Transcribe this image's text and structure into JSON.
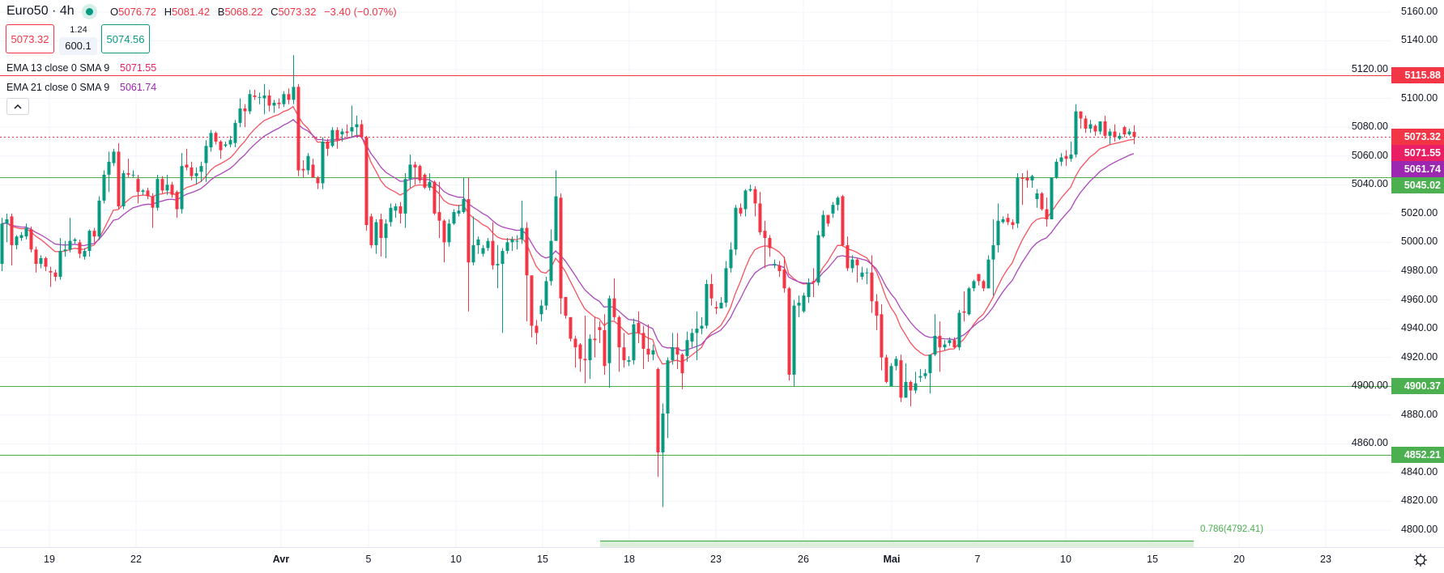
{
  "header": {
    "symbol": "Euro50 · 4h",
    "status_icon": "market-open-dot-icon",
    "ohlc": {
      "o_label": "O",
      "o": "5076.72",
      "h_label": "H",
      "h": "5081.42",
      "l_label": "B",
      "l": "5068.22",
      "c_label": "C",
      "c": "5073.32",
      "change": "−3.40 (−0.07%)"
    },
    "sell_price": "5073.32",
    "spread": "1.24",
    "quantity": "600.1",
    "buy_price": "5074.56"
  },
  "indicators": [
    {
      "label": "EMA 13 close 0 SMA 9",
      "value": "5071.55",
      "color": "#e91e63"
    },
    {
      "label": "EMA 21 close 0 SMA 9",
      "value": "5061.74",
      "color": "#9c27b0"
    }
  ],
  "collapse_icon": "chevron-up-icon",
  "settings_icon": "gear-icon",
  "price_axis": {
    "ticks": [
      "5160.00",
      "5140.00",
      "5120.00",
      "5100.00",
      "5080.00",
      "5060.00",
      "5040.00",
      "5020.00",
      "5000.00",
      "4980.00",
      "4960.00",
      "4940.00",
      "4920.00",
      "4900.00",
      "4880.00",
      "4860.00",
      "4840.00",
      "4820.00",
      "4800.00"
    ]
  },
  "time_axis": {
    "labels": [
      "19",
      "22",
      "Avr",
      "5",
      "10",
      "15",
      "18",
      "23",
      "26",
      "Mai",
      "7",
      "10",
      "15",
      "20",
      "23"
    ]
  },
  "price_badges": [
    {
      "value": "5115.88",
      "color": "#f23645"
    },
    {
      "value": "5073.32",
      "color": "#f23645"
    },
    {
      "value": "5071.55",
      "color": "#e91e63"
    },
    {
      "value": "5061.74",
      "color": "#9c27b0"
    },
    {
      "value": "5045.02",
      "color": "#4caf50"
    },
    {
      "value": "4900.37",
      "color": "#4caf50"
    },
    {
      "value": "4852.21",
      "color": "#4caf50"
    }
  ],
  "fib": {
    "label": "0.786(4792.41)",
    "level": 4792.41,
    "color": "#4caf50"
  },
  "chart_data": {
    "type": "candlestick",
    "timeframe": "4h",
    "ylim": [
      4790,
      5165
    ],
    "grid": true,
    "colors": {
      "up": "#089981",
      "down": "#f23645",
      "ema13": "#f7525f",
      "ema21": "#ab47bc"
    },
    "horizontal_levels": [
      {
        "price": 5115.88,
        "color": "#f23645",
        "style": "solid"
      },
      {
        "price": 5073.32,
        "color": "#f23645",
        "style": "dotted"
      },
      {
        "price": 5045.02,
        "color": "#4caf50",
        "style": "solid"
      },
      {
        "price": 4900.37,
        "color": "#4caf50",
        "style": "solid"
      },
      {
        "price": 4852.21,
        "color": "#4caf50",
        "style": "solid"
      }
    ],
    "ema_periods": [
      13,
      21
    ],
    "ohlc_fields": [
      "open",
      "high",
      "low",
      "close"
    ],
    "ohlc": [
      [
        4985,
        5017,
        4980,
        5013
      ],
      [
        5013,
        5020,
        5000,
        5016
      ],
      [
        5018,
        5020,
        4984,
        4998
      ],
      [
        4998,
        5005,
        4995,
        5004
      ],
      [
        5003,
        5007,
        5001,
        5005
      ],
      [
        5004,
        5013,
        5002,
        5010
      ],
      [
        5009,
        5011,
        4993,
        4995
      ],
      [
        4995,
        4997,
        4979,
        4985
      ],
      [
        4985,
        4991,
        4982,
        4989
      ],
      [
        4989,
        4990,
        4980,
        4983
      ],
      [
        4980,
        4983,
        4969,
        4979
      ],
      [
        4979,
        4981,
        4973,
        4976
      ],
      [
        4976,
        5003,
        4974,
        4994
      ],
      [
        4994,
        5001,
        4990,
        4995
      ],
      [
        4995,
        5017,
        4993,
        5001
      ],
      [
        5001,
        5003,
        4999,
        5002
      ],
      [
        5000,
        5002,
        4989,
        4992
      ],
      [
        4990,
        4996,
        4988,
        4994
      ],
      [
        4994,
        5009,
        4990,
        5008
      ],
      [
        5008,
        5010,
        5000,
        5004
      ],
      [
        5004,
        5032,
        5002,
        5029
      ],
      [
        5029,
        5050,
        5027,
        5047
      ],
      [
        5047,
        5063,
        5035,
        5056
      ],
      [
        5055,
        5065,
        5053,
        5063
      ],
      [
        5063,
        5069,
        5023,
        5025
      ],
      [
        5025,
        5050,
        5023,
        5048
      ],
      [
        5048,
        5058,
        5045,
        5047
      ],
      [
        5047,
        5050,
        5045,
        5047
      ],
      [
        5044,
        5047,
        5027,
        5035
      ],
      [
        5035,
        5037,
        5033,
        5036
      ],
      [
        5036,
        5038,
        5030,
        5032
      ],
      [
        5032,
        5034,
        5010,
        5024
      ],
      [
        5024,
        5047,
        5022,
        5044
      ],
      [
        5044,
        5046,
        5034,
        5036
      ],
      [
        5036,
        5047,
        5033,
        5040
      ],
      [
        5040,
        5042,
        5031,
        5033
      ],
      [
        5035,
        5036,
        5017,
        5023
      ],
      [
        5023,
        5062,
        5020,
        5053
      ],
      [
        5054,
        5065,
        5050,
        5052
      ],
      [
        5052,
        5056,
        5043,
        5046
      ],
      [
        5046,
        5052,
        5040,
        5048
      ],
      [
        5049,
        5056,
        5042,
        5053
      ],
      [
        5055,
        5071,
        5042,
        5067
      ],
      [
        5066,
        5078,
        5063,
        5076
      ],
      [
        5076,
        5077,
        5068,
        5070
      ],
      [
        5070,
        5071,
        5058,
        5064
      ],
      [
        5067,
        5070,
        5066,
        5068
      ],
      [
        5068,
        5074,
        5066,
        5071
      ],
      [
        5069,
        5085,
        5066,
        5083
      ],
      [
        5083,
        5100,
        5080,
        5093
      ],
      [
        5093,
        5096,
        5080,
        5091
      ],
      [
        5091,
        5106,
        5089,
        5103
      ],
      [
        5102,
        5106,
        5099,
        5101
      ],
      [
        5101,
        5104,
        5096,
        5101
      ],
      [
        5100,
        5110,
        5089,
        5102
      ],
      [
        5102,
        5106,
        5091,
        5095
      ],
      [
        5095,
        5099,
        5090,
        5097
      ],
      [
        5097,
        5100,
        5093,
        5096
      ],
      [
        5096,
        5105,
        5094,
        5103
      ],
      [
        5103,
        5107,
        5096,
        5099
      ],
      [
        5099,
        5130,
        5096,
        5108
      ],
      [
        5108,
        5110,
        5046,
        5050
      ],
      [
        5051,
        5057,
        5045,
        5050
      ],
      [
        5050,
        5062,
        5047,
        5060
      ],
      [
        5054,
        5058,
        5045,
        5045
      ],
      [
        5045,
        5046,
        5037,
        5041
      ],
      [
        5041,
        5073,
        5037,
        5070
      ],
      [
        5070,
        5072,
        5060,
        5065
      ],
      [
        5067,
        5080,
        5066,
        5078
      ],
      [
        5078,
        5080,
        5065,
        5071
      ],
      [
        5075,
        5079,
        5070,
        5077
      ],
      [
        5077,
        5082,
        5072,
        5076
      ],
      [
        5077,
        5095,
        5073,
        5080
      ],
      [
        5080,
        5088,
        5074,
        5082
      ],
      [
        5082,
        5085,
        5072,
        5073
      ],
      [
        5073,
        5074,
        5008,
        5012
      ],
      [
        5018,
        5020,
        4996,
        4998
      ],
      [
        4998,
        5016,
        4992,
        5014
      ],
      [
        5016,
        5020,
        4990,
        5003
      ],
      [
        5003,
        5016,
        4989,
        5013
      ],
      [
        5014,
        5027,
        5011,
        5024
      ],
      [
        5022,
        5027,
        5017,
        5025
      ],
      [
        5025,
        5028,
        5013,
        5020
      ],
      [
        5020,
        5048,
        5010,
        5044
      ],
      [
        5044,
        5061,
        5038,
        5054
      ],
      [
        5054,
        5056,
        5040,
        5052
      ],
      [
        5053,
        5054,
        5041,
        5043
      ],
      [
        5047,
        5048,
        5037,
        5038
      ],
      [
        5038,
        5048,
        5036,
        5042
      ],
      [
        5042,
        5043,
        5019,
        5020
      ],
      [
        5021,
        5042,
        5003,
        5015
      ],
      [
        5015,
        5016,
        4986,
        5000
      ],
      [
        5000,
        5016,
        4997,
        5013
      ],
      [
        5013,
        5023,
        5012,
        5021
      ],
      [
        5020,
        5026,
        5018,
        5022
      ],
      [
        5021,
        5045,
        5020,
        5030
      ],
      [
        5030,
        5045,
        4952,
        4986
      ],
      [
        4986,
        5018,
        4984,
        4998
      ],
      [
        4998,
        5004,
        4992,
        5002
      ],
      [
        4992,
        4998,
        4990,
        4996
      ],
      [
        4996,
        5003,
        4994,
        5001
      ],
      [
        5001,
        5014,
        4981,
        4984
      ],
      [
        4984,
        4998,
        4968,
        4985
      ],
      [
        4985,
        4996,
        4937,
        4994
      ],
      [
        4994,
        5003,
        4992,
        5000
      ],
      [
        5000,
        5004,
        4994,
        5002
      ],
      [
        5001,
        5005,
        4995,
        5001
      ],
      [
        5002,
        5029,
        4999,
        5010
      ],
      [
        5010,
        5014,
        4945,
        4977
      ],
      [
        4977,
        4977,
        4934,
        4942
      ],
      [
        4942,
        4946,
        4929,
        4937
      ],
      [
        4950,
        4960,
        4945,
        4956
      ],
      [
        4956,
        4976,
        4953,
        4973
      ],
      [
        4973,
        5009,
        4970,
        5001
      ],
      [
        5001,
        5050,
        5001,
        5032
      ],
      [
        5031,
        5034,
        4950,
        4961
      ],
      [
        4962,
        4962,
        4947,
        4949
      ],
      [
        4948,
        4948,
        4931,
        4933
      ],
      [
        4933,
        4935,
        4913,
        4927
      ],
      [
        4929,
        4930,
        4910,
        4919
      ],
      [
        4919,
        4949,
        4902,
        4918
      ],
      [
        4918,
        4936,
        4905,
        4933
      ],
      [
        4933,
        4948,
        4920,
        4932
      ],
      [
        4941,
        4945,
        4930,
        4939
      ],
      [
        4939,
        4950,
        4908,
        4914
      ],
      [
        4916,
        4963,
        4899,
        4961
      ],
      [
        4961,
        4975,
        4946,
        4948
      ],
      [
        4948,
        4949,
        4910,
        4927
      ],
      [
        4927,
        4937,
        4913,
        4918
      ],
      [
        4917,
        4921,
        4914,
        4918
      ],
      [
        4918,
        4947,
        4915,
        4943
      ],
      [
        4944,
        4952,
        4930,
        4937
      ],
      [
        4937,
        4942,
        4912,
        4926
      ],
      [
        4926,
        4943,
        4917,
        4922
      ],
      [
        4922,
        4929,
        4918,
        4925
      ],
      [
        4912,
        4913,
        4837,
        4854
      ],
      [
        4854,
        4888,
        4816,
        4881
      ],
      [
        4881,
        4920,
        4864,
        4918
      ],
      [
        4918,
        4937,
        4915,
        4927
      ],
      [
        4927,
        4937,
        4912,
        4922
      ],
      [
        4922,
        4923,
        4898,
        4909
      ],
      [
        4921,
        4938,
        4917,
        4932
      ],
      [
        4931,
        4940,
        4927,
        4937
      ],
      [
        4937,
        4952,
        4918,
        4940
      ],
      [
        4940,
        4948,
        4936,
        4942
      ],
      [
        4942,
        4974,
        4940,
        4971
      ],
      [
        4971,
        4978,
        4956,
        4961
      ],
      [
        4955,
        4959,
        4950,
        4954
      ],
      [
        4954,
        4962,
        4954,
        4958
      ],
      [
        4958,
        4987,
        4955,
        4982
      ],
      [
        4982,
        5000,
        4979,
        4995
      ],
      [
        4995,
        5026,
        4991,
        5024
      ],
      [
        5024,
        5027,
        5018,
        5020
      ],
      [
        5023,
        5037,
        5018,
        5036
      ],
      [
        5036,
        5040,
        5035,
        5037
      ],
      [
        5037,
        5039,
        5018,
        5027
      ],
      [
        5027,
        5035,
        5005,
        5007
      ],
      [
        5008,
        5015,
        4982,
        5003
      ],
      [
        5003,
        5005,
        4990,
        4996
      ],
      [
        4984,
        4988,
        4982,
        4985
      ],
      [
        4984,
        4987,
        4976,
        4980
      ],
      [
        4981,
        4990,
        4965,
        4968
      ],
      [
        4968,
        4969,
        4904,
        4908
      ],
      [
        4908,
        4960,
        4900,
        4956
      ],
      [
        4956,
        4963,
        4948,
        4958
      ],
      [
        4952,
        4965,
        4951,
        4963
      ],
      [
        4962,
        4975,
        4958,
        4972
      ],
      [
        4973,
        4982,
        4962,
        4972
      ],
      [
        4972,
        5008,
        4970,
        5005
      ],
      [
        5004,
        5022,
        5003,
        5019
      ],
      [
        5019,
        5019,
        5011,
        5013
      ],
      [
        5020,
        5028,
        5017,
        5026
      ],
      [
        5026,
        5032,
        5022,
        5031
      ],
      [
        5032,
        5033,
        4997,
        4998
      ],
      [
        4998,
        5004,
        4980,
        4982
      ],
      [
        4982,
        4991,
        4979,
        4988
      ],
      [
        4988,
        4989,
        4972,
        4984
      ],
      [
        4976,
        4983,
        4974,
        4979
      ],
      [
        4979,
        4982,
        4971,
        4979
      ],
      [
        4979,
        4991,
        4951,
        4959
      ],
      [
        4959,
        4964,
        4939,
        4949
      ],
      [
        4950,
        4957,
        4911,
        4920
      ],
      [
        4920,
        4922,
        4902,
        4903
      ],
      [
        4900,
        4916,
        4900,
        4914
      ],
      [
        4914,
        4921,
        4911,
        4919
      ],
      [
        4918,
        4922,
        4889,
        4892
      ],
      [
        4892,
        4916,
        4892,
        4903
      ],
      [
        4903,
        4904,
        4886,
        4897
      ],
      [
        4897,
        4910,
        4895,
        4902
      ],
      [
        4906,
        4912,
        4903,
        4907
      ],
      [
        4907,
        4912,
        4905,
        4909
      ],
      [
        4909,
        4922,
        4895,
        4922
      ],
      [
        4922,
        4950,
        4921,
        4935
      ],
      [
        4935,
        4945,
        4910,
        4927
      ],
      [
        4927,
        4932,
        4925,
        4929
      ],
      [
        4930,
        4934,
        4928,
        4932
      ],
      [
        4932,
        4934,
        4926,
        4927
      ],
      [
        4927,
        4953,
        4925,
        4951
      ],
      [
        4952,
        4966,
        4945,
        4951
      ],
      [
        4950,
        4969,
        4949,
        4968
      ],
      [
        4968,
        4974,
        4966,
        4973
      ],
      [
        4978,
        4978,
        4970,
        4973
      ],
      [
        4973,
        4974,
        4966,
        4968
      ],
      [
        4968,
        4991,
        4968,
        4988
      ],
      [
        4988,
        5016,
        4963,
        4998
      ],
      [
        4998,
        5027,
        4993,
        5015
      ],
      [
        5014,
        5018,
        5013,
        5016
      ],
      [
        5017,
        5020,
        5012,
        5014
      ],
      [
        5014,
        5016,
        5009,
        5012
      ],
      [
        5013,
        5048,
        5010,
        5045
      ],
      [
        5045,
        5048,
        5026,
        5044
      ],
      [
        5045,
        5050,
        5038,
        5043
      ],
      [
        5043,
        5047,
        5038,
        5046
      ],
      [
        5030,
        5037,
        5024,
        5034
      ],
      [
        5034,
        5035,
        5022,
        5023
      ],
      [
        5023,
        5031,
        5011,
        5016
      ],
      [
        5016,
        5045,
        5016,
        5045
      ],
      [
        5045,
        5058,
        5044,
        5056
      ],
      [
        5056,
        5062,
        5053,
        5059
      ],
      [
        5060,
        5064,
        5053,
        5058
      ],
      [
        5058,
        5070,
        5056,
        5061
      ],
      [
        5061,
        5096,
        5059,
        5091
      ],
      [
        5091,
        5091,
        5079,
        5086
      ],
      [
        5086,
        5088,
        5076,
        5079
      ],
      [
        5079,
        5085,
        5076,
        5082
      ],
      [
        5081,
        5082,
        5074,
        5077
      ],
      [
        5077,
        5084,
        5075,
        5084
      ],
      [
        5084,
        5088,
        5072,
        5074
      ],
      [
        5074,
        5079,
        5068,
        5077
      ],
      [
        5077,
        5082,
        5070,
        5073
      ],
      [
        5072,
        5076,
        5071,
        5074
      ],
      [
        5080,
        5081,
        5073,
        5075
      ],
      [
        5075,
        5079,
        5074,
        5077
      ],
      [
        5076.72,
        5081.42,
        5068.22,
        5073.32
      ]
    ]
  }
}
